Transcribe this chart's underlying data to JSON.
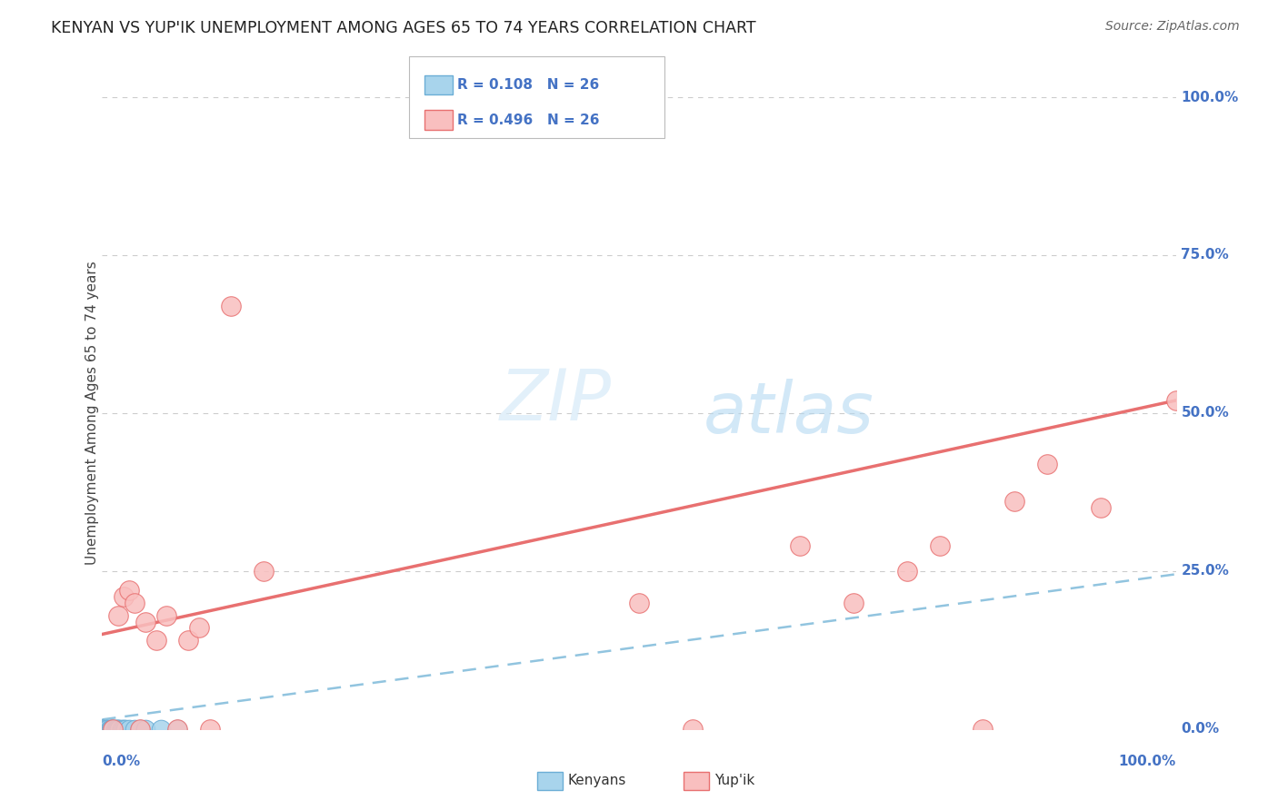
{
  "title": "KENYAN VS YUP'IK UNEMPLOYMENT AMONG AGES 65 TO 74 YEARS CORRELATION CHART",
  "source": "Source: ZipAtlas.com",
  "ylabel": "Unemployment Among Ages 65 to 74 years",
  "kenyan_R": "R = 0.108",
  "kenyan_N": "N = 26",
  "yupik_R": "R = 0.496",
  "yupik_N": "N = 26",
  "kenyan_color": "#A8D4EC",
  "kenyan_edge_color": "#6BAED6",
  "yupik_color": "#F9BFBF",
  "yupik_edge_color": "#E87070",
  "kenyan_line_color": "#91C4DF",
  "yupik_line_color": "#E87070",
  "grid_color": "#CCCCCC",
  "background_color": "#FFFFFF",
  "watermark_zip": "ZIP",
  "watermark_atlas": "atlas",
  "kenyan_x": [
    0.0,
    0.0,
    0.0,
    0.0,
    0.0,
    0.005,
    0.005,
    0.007,
    0.008,
    0.009,
    0.01,
    0.01,
    0.012,
    0.013,
    0.014,
    0.015,
    0.016,
    0.018,
    0.02,
    0.022,
    0.025,
    0.03,
    0.035,
    0.04,
    0.055,
    0.07
  ],
  "kenyan_y": [
    0.0,
    0.0,
    0.0,
    0.0,
    0.0,
    0.0,
    0.0,
    0.0,
    0.0,
    0.0,
    0.0,
    0.0,
    0.0,
    0.0,
    0.0,
    0.0,
    0.0,
    0.0,
    0.0,
    0.0,
    0.0,
    0.0,
    0.0,
    0.0,
    0.0,
    0.0
  ],
  "yupik_x": [
    0.01,
    0.015,
    0.02,
    0.025,
    0.03,
    0.035,
    0.04,
    0.05,
    0.06,
    0.07,
    0.08,
    0.09,
    0.1,
    0.12,
    0.15,
    0.5,
    0.55,
    0.65,
    0.7,
    0.75,
    0.78,
    0.82,
    0.85,
    0.88,
    0.93,
    1.0
  ],
  "yupik_y": [
    0.0,
    0.18,
    0.21,
    0.22,
    0.2,
    0.0,
    0.17,
    0.14,
    0.18,
    0.0,
    0.14,
    0.16,
    0.0,
    0.67,
    0.25,
    0.2,
    0.0,
    0.29,
    0.2,
    0.25,
    0.29,
    0.0,
    0.36,
    0.42,
    0.35,
    0.52
  ],
  "xlim": [
    0.0,
    1.0
  ],
  "ylim": [
    0.0,
    1.0
  ],
  "yupik_line_x0": 0.0,
  "yupik_line_y0": 0.15,
  "yupik_line_x1": 1.0,
  "yupik_line_y1": 0.52,
  "kenyan_line_x0": 0.0,
  "kenyan_line_y0": 0.015,
  "kenyan_line_x1": 1.0,
  "kenyan_line_y1": 0.245
}
